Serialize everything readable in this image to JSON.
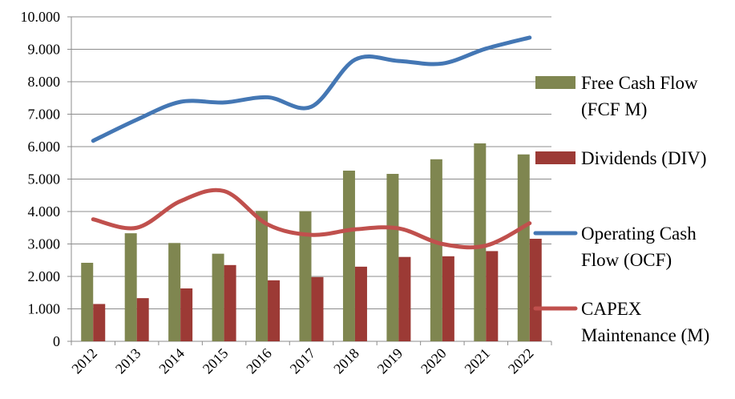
{
  "chart_data": {
    "type": "bar",
    "categories": [
      "2012",
      "2013",
      "2014",
      "2015",
      "2016",
      "2017",
      "2018",
      "2019",
      "2020",
      "2021",
      "2022"
    ],
    "ylim": [
      0,
      10000
    ],
    "yticks": [
      0,
      1000,
      2000,
      3000,
      4000,
      5000,
      6000,
      7000,
      8000,
      9000,
      10000
    ],
    "ytick_labels": [
      "0",
      "1.000",
      "2.000",
      "3.000",
      "4.000",
      "5.000",
      "6.000",
      "7.000",
      "8.000",
      "9.000",
      "10.000"
    ],
    "grid": true,
    "legend_position": "right",
    "series": [
      {
        "name": "Free Cash Flow (FCF M)",
        "legend_lines": [
          "Free Cash Flow",
          "(FCF M)"
        ],
        "kind": "bar",
        "color": "#7f8650",
        "values": [
          2420,
          3330,
          3030,
          2700,
          4020,
          4010,
          5260,
          5160,
          5610,
          6100,
          5760
        ]
      },
      {
        "name": "Dividends (DIV)",
        "legend_lines": [
          "Dividends (DIV)"
        ],
        "kind": "bar",
        "color": "#9c3a35",
        "values": [
          1150,
          1330,
          1630,
          2350,
          1880,
          1980,
          2300,
          2600,
          2620,
          2780,
          3160
        ]
      },
      {
        "name": "Operating Cash Flow (OCF)",
        "legend_lines": [
          "Operating Cash",
          "Flow (OCF)"
        ],
        "kind": "line",
        "color": "#4477b4",
        "values": [
          6180,
          6830,
          7380,
          7360,
          7520,
          7230,
          8680,
          8640,
          8560,
          9020,
          9360
        ]
      },
      {
        "name": "CAPEX Maintenance (M)",
        "legend_lines": [
          "CAPEX",
          "Maintenance (M)"
        ],
        "kind": "line",
        "color": "#c0504d",
        "values": [
          3760,
          3500,
          4320,
          4630,
          3600,
          3280,
          3450,
          3480,
          3000,
          2950,
          3640
        ]
      }
    ]
  }
}
